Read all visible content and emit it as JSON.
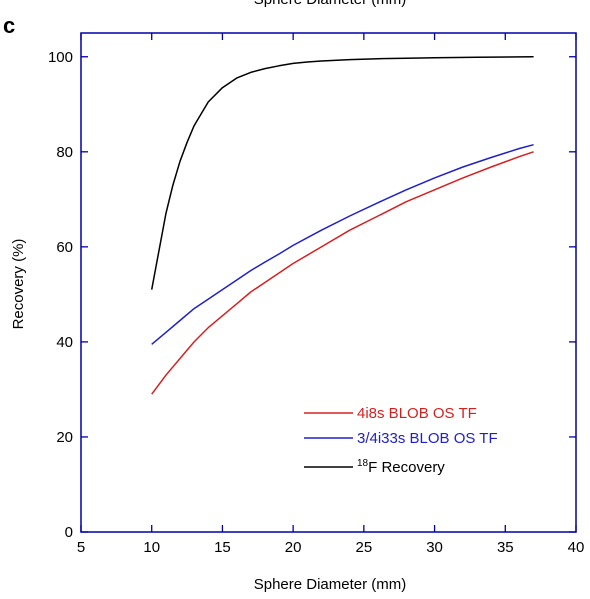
{
  "panel_label": "c",
  "clipped_top_text": "Sphere Diameter (mm)",
  "chart_data": {
    "type": "line",
    "title": "",
    "xlabel": "Sphere Diameter (mm)",
    "ylabel": "Recovery (%)",
    "xlim": [
      5,
      40
    ],
    "ylim": [
      0,
      105
    ],
    "xticks": [
      5,
      10,
      15,
      20,
      25,
      30,
      35,
      40
    ],
    "yticks": [
      0,
      20,
      40,
      60,
      80,
      100
    ],
    "grid": false,
    "legend_position": "lower-right",
    "axis_color": "#0000aa",
    "series": [
      {
        "name": "4i8s BLOB OS TF",
        "color": "#d62020",
        "x": [
          10,
          11,
          12,
          13,
          14,
          15,
          16,
          17,
          18,
          19,
          20,
          22,
          24,
          26,
          28,
          30,
          32,
          34,
          36,
          37
        ],
        "y": [
          29,
          33,
          36.5,
          40,
          43,
          45.5,
          48,
          50.5,
          52.5,
          54.5,
          56.5,
          60,
          63.5,
          66.5,
          69.5,
          72,
          74.5,
          76.8,
          79,
          80
        ]
      },
      {
        "name": "3/4i33s BLOB OS TF",
        "color": "#2020c8",
        "x": [
          10,
          11,
          12,
          13,
          14,
          15,
          16,
          17,
          18,
          19,
          20,
          22,
          24,
          26,
          28,
          30,
          32,
          34,
          36,
          37
        ],
        "y": [
          39.5,
          42,
          44.5,
          47,
          49,
          51,
          53,
          55,
          56.8,
          58.5,
          60.3,
          63.5,
          66.5,
          69.3,
          72,
          74.5,
          76.8,
          78.8,
          80.7,
          81.5
        ]
      },
      {
        "name": "Recovery",
        "superscript": "18",
        "prefix": "F",
        "color": "#000000",
        "x": [
          10,
          10.5,
          11,
          11.5,
          12,
          12.5,
          13,
          13.5,
          14,
          15,
          16,
          17,
          18,
          19,
          20,
          21,
          22,
          24,
          26,
          28,
          30,
          33,
          37
        ],
        "y": [
          51,
          59,
          67,
          73,
          78,
          82,
          85.5,
          88,
          90.5,
          93.5,
          95.5,
          96.7,
          97.5,
          98.1,
          98.6,
          98.9,
          99.1,
          99.4,
          99.6,
          99.7,
          99.8,
          99.9,
          100
        ]
      }
    ]
  }
}
